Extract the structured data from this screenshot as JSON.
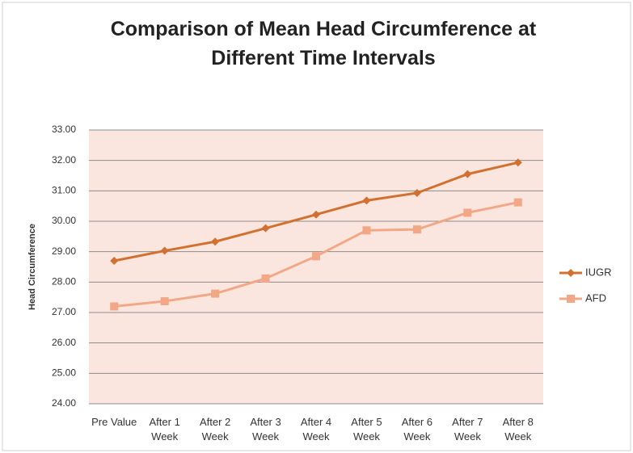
{
  "chart_data": {
    "type": "line",
    "title": "Comparison of Mean Head Circumference at Different Time Intervals",
    "y_label": "Head Circumference",
    "categories": [
      "Pre Value",
      "After 1 Week",
      "After 2 Week",
      "After 3 Week",
      "After 4 Week",
      "After 5 Week",
      "After 6 Week",
      "After 7 Week",
      "After 8 Week"
    ],
    "series": [
      {
        "name": "IUGR",
        "color": "#d2712f",
        "marker": "diamond",
        "values": [
          28.7,
          29.03,
          29.33,
          29.77,
          30.22,
          30.68,
          30.93,
          31.55,
          31.93
        ]
      },
      {
        "name": "AFD",
        "color": "#f2a886",
        "marker": "square",
        "values": [
          27.2,
          27.37,
          27.62,
          28.12,
          28.85,
          29.7,
          29.73,
          30.28,
          30.62
        ]
      }
    ],
    "ylim": [
      24,
      33
    ],
    "yticks": [
      {
        "value": 24,
        "label": "24.00"
      },
      {
        "value": 25,
        "label": "25.00"
      },
      {
        "value": 26,
        "label": "26.00"
      },
      {
        "value": 27,
        "label": "27.00"
      },
      {
        "value": 28,
        "label": "28.00"
      },
      {
        "value": 29,
        "label": "29.00"
      },
      {
        "value": 30,
        "label": "30.00"
      },
      {
        "value": 31,
        "label": "31.00"
      },
      {
        "value": 32,
        "label": "32.00"
      },
      {
        "value": 33,
        "label": "33.00"
      }
    ],
    "grid": true,
    "legend": "right",
    "plot_background": "#fbe6df"
  }
}
